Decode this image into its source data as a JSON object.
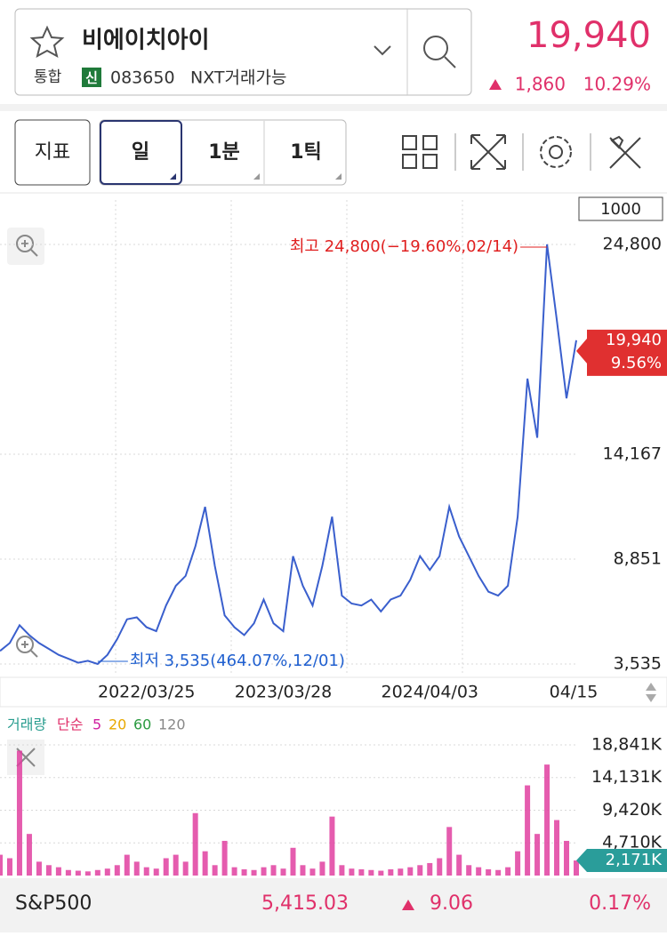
{
  "header": {
    "name": "비에이치아이",
    "market": "통합",
    "badge": "신",
    "code": "083650",
    "tag": "NXT거래가능",
    "price": "19,940",
    "change": "1,860",
    "change_pct": "10.29%"
  },
  "toolbar": {
    "indicator": "지표",
    "periods": [
      "일",
      "1분",
      "1틱"
    ]
  },
  "chart_data": {
    "type": "line",
    "zoom_box": "1000",
    "values": [
      4200,
      4600,
      5500,
      5000,
      4600,
      4300,
      4000,
      3800,
      3600,
      3700,
      3535,
      4000,
      4800,
      5800,
      5900,
      5400,
      5200,
      6500,
      7500,
      8000,
      9500,
      11500,
      8500,
      6000,
      5400,
      5000,
      5600,
      6800,
      5600,
      5200,
      9000,
      7500,
      6500,
      8500,
      11000,
      7000,
      6600,
      6500,
      6800,
      6200,
      6800,
      7000,
      7800,
      9000,
      8300,
      9000,
      11500,
      10000,
      9000,
      8000,
      7200,
      7000,
      7500,
      11000,
      18000,
      15000,
      24800,
      21000,
      17000,
      19940
    ],
    "categories": [
      null,
      null,
      null,
      null,
      null,
      null,
      null,
      null,
      null,
      null,
      null,
      null,
      null,
      null,
      null,
      "2022/03/25",
      null,
      null,
      null,
      null,
      null,
      null,
      null,
      null,
      null,
      null,
      null,
      null,
      null,
      "2023/03/28",
      null,
      null,
      null,
      null,
      null,
      null,
      null,
      null,
      null,
      null,
      null,
      null,
      null,
      null,
      "2024/04/03",
      null,
      null,
      null,
      null,
      null,
      null,
      null,
      null,
      null,
      null,
      null,
      null,
      null,
      null,
      "04/15"
    ],
    "color": "#3a5fcd",
    "ylim": [
      2950,
      27050
    ],
    "yticks": [
      {
        "value": 24800,
        "label": "24,800"
      },
      {
        "value": 14167,
        "label": "14,167"
      },
      {
        "value": 8851,
        "label": "8,851"
      },
      {
        "value": 3535,
        "label": "3,535"
      }
    ],
    "high_label": "최고 24,800(−19.60%,02/14)",
    "low_label": "최저 3,535(464.07%,12/01)",
    "current": {
      "value": 19940,
      "label": "19,940"
    },
    "current_pct": "9.56%"
  },
  "volume_data": {
    "type": "bar",
    "color": "#e040a0",
    "legend": {
      "title": "거래량",
      "method": "단순",
      "periods": [
        {
          "label": 5,
          "color": "#d020a0"
        },
        {
          "label": 20,
          "color": "#e8a800"
        },
        {
          "label": 60,
          "color": "#2a9a40"
        },
        {
          "label": 120,
          "color": "#888888"
        }
      ]
    },
    "values": [
      3000,
      2500,
      18000,
      6000,
      2000,
      1500,
      1200,
      800,
      700,
      600,
      800,
      1000,
      1500,
      3000,
      2000,
      1200,
      1000,
      2500,
      3000,
      2000,
      9000,
      3500,
      1500,
      5000,
      1200,
      900,
      800,
      1200,
      1500,
      1000,
      4000,
      1500,
      1000,
      2000,
      8500,
      1500,
      1000,
      900,
      800,
      700,
      900,
      1000,
      1200,
      1500,
      1800,
      2500,
      7000,
      3000,
      1500,
      1200,
      900,
      800,
      1200,
      3500,
      13000,
      6000,
      16000,
      8000,
      5000,
      2171
    ],
    "ylim": [
      0,
      19860
    ],
    "yticks": [
      {
        "value": 18841,
        "label": "18,841K"
      },
      {
        "value": 14131,
        "label": "14,131K"
      },
      {
        "value": 9420,
        "label": "9,420K"
      },
      {
        "value": 4710,
        "label": "4,710K"
      }
    ],
    "current": {
      "value": 2171,
      "label": "2,171K"
    }
  },
  "footer": {
    "index": "S&P500",
    "value": "5,415.03",
    "change": "9.06",
    "change_pct": "0.17%"
  }
}
